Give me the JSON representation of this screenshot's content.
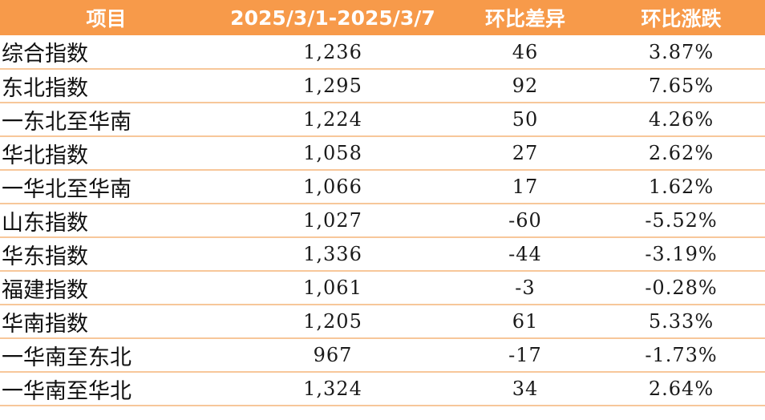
{
  "table": {
    "headers": [
      "项目",
      "2025/3/1-2025/3/7",
      "环比差异",
      "环比涨跌"
    ],
    "rows": [
      {
        "name": "综合指数",
        "value": "1,236",
        "diff": "46",
        "pct": "3.87%"
      },
      {
        "name": "东北指数",
        "value": "1,295",
        "diff": "92",
        "pct": "7.65%"
      },
      {
        "name": "一东北至华南",
        "value": "1,224",
        "diff": "50",
        "pct": "4.26%"
      },
      {
        "name": "华北指数",
        "value": "1,058",
        "diff": "27",
        "pct": "2.62%"
      },
      {
        "name": "一华北至华南",
        "value": "1,066",
        "diff": "17",
        "pct": "1.62%"
      },
      {
        "name": "山东指数",
        "value": "1,027",
        "diff": "-60",
        "pct": "-5.52%"
      },
      {
        "name": "华东指数",
        "value": "1,336",
        "diff": "-44",
        "pct": "-3.19%"
      },
      {
        "name": "福建指数",
        "value": "1,061",
        "diff": "-3",
        "pct": "-0.28%"
      },
      {
        "name": "华南指数",
        "value": "1,205",
        "diff": "61",
        "pct": "5.33%"
      },
      {
        "name": "一华南至东北",
        "value": "967",
        "diff": "-17",
        "pct": "-1.73%"
      },
      {
        "name": "一华南至华北",
        "value": "1,324",
        "diff": "34",
        "pct": "2.64%"
      }
    ]
  },
  "colors": {
    "header_bg": "#f79a4a",
    "header_text": "#ffffff",
    "row_divider": "#f7c79a"
  }
}
